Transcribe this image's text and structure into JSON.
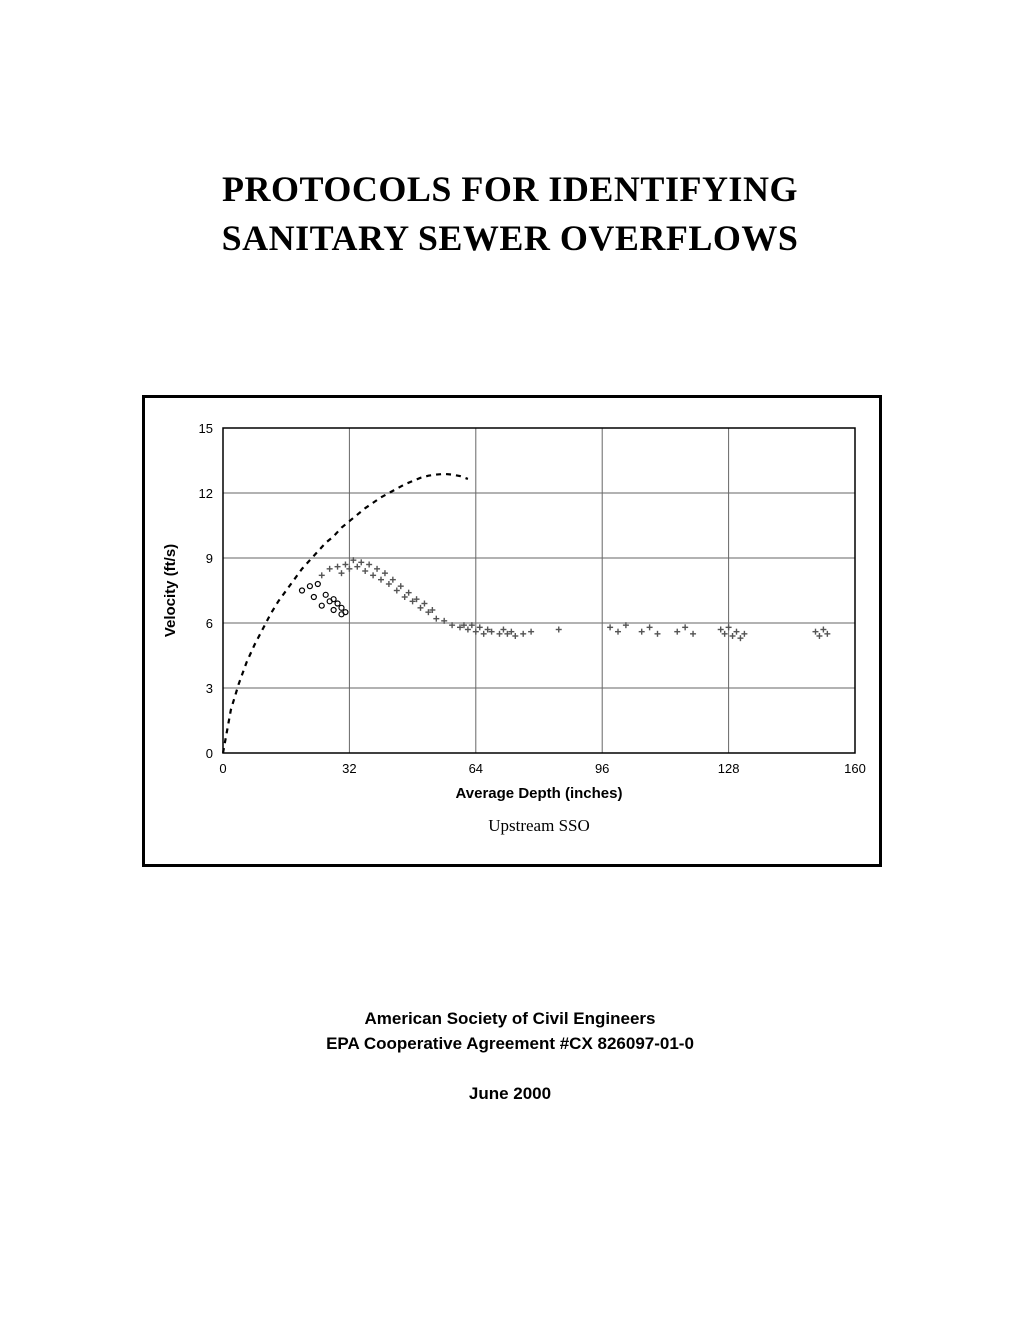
{
  "title": {
    "line1": "PROTOCOLS FOR IDENTIFYING",
    "line2": "SANITARY SEWER OVERFLOWS"
  },
  "chart": {
    "type": "scatter",
    "caption": "Upstream SSO",
    "xlabel": "Average Depth (inches)",
    "ylabel": "Velocity (ft/s)",
    "xlim": [
      0,
      160
    ],
    "ylim": [
      0,
      15
    ],
    "xtick_step": 32,
    "ytick_step": 3,
    "xticks": [
      0,
      32,
      64,
      96,
      128,
      160
    ],
    "yticks": [
      0,
      3,
      6,
      9,
      12,
      15
    ],
    "background_color": "#ffffff",
    "grid_color": "#666666",
    "axis_color": "#000000",
    "text_color": "#000000",
    "tick_fontsize": 13,
    "label_fontsize": 15,
    "caption_fontsize": 17,
    "grid_linewidth": 1,
    "curve": {
      "dash": "5,5",
      "linewidth": 2.2,
      "color": "#000000",
      "points": [
        [
          0,
          0
        ],
        [
          2,
          2.0
        ],
        [
          4,
          3.2
        ],
        [
          6,
          4.2
        ],
        [
          8,
          5.0
        ],
        [
          10,
          5.7
        ],
        [
          12,
          6.4
        ],
        [
          14,
          7.0
        ],
        [
          16,
          7.5
        ],
        [
          18,
          8.0
        ],
        [
          20,
          8.5
        ],
        [
          22,
          8.9
        ],
        [
          24,
          9.3
        ],
        [
          26,
          9.7
        ],
        [
          28,
          10.0
        ],
        [
          30,
          10.4
        ],
        [
          32,
          10.7
        ],
        [
          34,
          11.0
        ],
        [
          36,
          11.3
        ],
        [
          38,
          11.55
        ],
        [
          40,
          11.8
        ],
        [
          42,
          12.0
        ],
        [
          44,
          12.2
        ],
        [
          46,
          12.4
        ],
        [
          48,
          12.55
        ],
        [
          50,
          12.7
        ],
        [
          52,
          12.8
        ],
        [
          54,
          12.85
        ],
        [
          56,
          12.88
        ],
        [
          58,
          12.85
        ],
        [
          60,
          12.78
        ],
        [
          62,
          12.65
        ]
      ]
    },
    "series_circle": {
      "marker": "circle-open",
      "size": 5,
      "color": "#000000",
      "points": [
        [
          20,
          7.5
        ],
        [
          22,
          7.7
        ],
        [
          23,
          7.2
        ],
        [
          24,
          7.8
        ],
        [
          25,
          6.8
        ],
        [
          26,
          7.3
        ],
        [
          27,
          7.0
        ],
        [
          28,
          6.6
        ],
        [
          28,
          7.1
        ],
        [
          29,
          6.9
        ],
        [
          30,
          6.7
        ],
        [
          30,
          6.4
        ],
        [
          31,
          6.5
        ]
      ]
    },
    "series_plus": {
      "marker": "plus",
      "size": 6,
      "color": "#555555",
      "points": [
        [
          25,
          8.2
        ],
        [
          27,
          8.5
        ],
        [
          29,
          8.6
        ],
        [
          30,
          8.3
        ],
        [
          31,
          8.7
        ],
        [
          32,
          8.5
        ],
        [
          33,
          8.9
        ],
        [
          34,
          8.6
        ],
        [
          35,
          8.8
        ],
        [
          36,
          8.4
        ],
        [
          37,
          8.7
        ],
        [
          38,
          8.2
        ],
        [
          39,
          8.5
        ],
        [
          40,
          8.0
        ],
        [
          41,
          8.3
        ],
        [
          42,
          7.8
        ],
        [
          43,
          8.0
        ],
        [
          44,
          7.5
        ],
        [
          45,
          7.7
        ],
        [
          46,
          7.2
        ],
        [
          47,
          7.4
        ],
        [
          48,
          7.0
        ],
        [
          49,
          7.1
        ],
        [
          50,
          6.7
        ],
        [
          51,
          6.9
        ],
        [
          52,
          6.5
        ],
        [
          53,
          6.6
        ],
        [
          54,
          6.2
        ],
        [
          56,
          6.1
        ],
        [
          58,
          5.9
        ],
        [
          60,
          5.8
        ],
        [
          61,
          5.9
        ],
        [
          62,
          5.7
        ],
        [
          63,
          5.9
        ],
        [
          64,
          5.6
        ],
        [
          65,
          5.8
        ],
        [
          66,
          5.5
        ],
        [
          67,
          5.7
        ],
        [
          68,
          5.6
        ],
        [
          70,
          5.5
        ],
        [
          71,
          5.7
        ],
        [
          72,
          5.5
        ],
        [
          73,
          5.6
        ],
        [
          74,
          5.4
        ],
        [
          76,
          5.5
        ],
        [
          78,
          5.6
        ],
        [
          85,
          5.7
        ],
        [
          98,
          5.8
        ],
        [
          100,
          5.6
        ],
        [
          102,
          5.9
        ],
        [
          106,
          5.6
        ],
        [
          108,
          5.8
        ],
        [
          110,
          5.5
        ],
        [
          115,
          5.6
        ],
        [
          117,
          5.8
        ],
        [
          119,
          5.5
        ],
        [
          126,
          5.7
        ],
        [
          127,
          5.5
        ],
        [
          128,
          5.8
        ],
        [
          129,
          5.4
        ],
        [
          130,
          5.6
        ],
        [
          131,
          5.3
        ],
        [
          132,
          5.5
        ],
        [
          150,
          5.6
        ],
        [
          151,
          5.4
        ],
        [
          152,
          5.7
        ],
        [
          153,
          5.5
        ]
      ]
    }
  },
  "footer": {
    "org": "American Society of Civil Engineers",
    "agreement": "EPA Cooperative Agreement #CX 826097-01-0",
    "date": "June 2000"
  },
  "colors": {
    "page_bg": "#ffffff",
    "text": "#000000"
  }
}
